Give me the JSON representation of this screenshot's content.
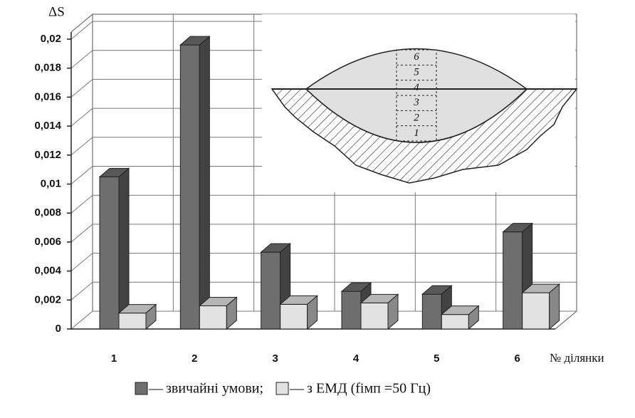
{
  "chart_data": {
    "type": "bar3d",
    "y_label": "ΔS",
    "x_label": "№ ділянки",
    "categories": [
      "1",
      "2",
      "3",
      "4",
      "5",
      "6"
    ],
    "series": [
      {
        "name": "звичайні умови",
        "color": "#6e6e6e",
        "values": [
          0.0105,
          0.0196,
          0.0053,
          0.0026,
          0.0024,
          0.0067
        ]
      },
      {
        "name": "з ЕМД (fімп =50 Гц)",
        "color": "#e2e2e2",
        "values": [
          0.0011,
          0.0016,
          0.0017,
          0.0018,
          0.001,
          0.0025
        ]
      }
    ],
    "ylim": [
      0,
      0.02
    ],
    "yticks": [
      0,
      {
        "value": 0.002,
        "label": "0,002"
      },
      {
        "value": 0.004,
        "label": "0,004"
      },
      {
        "value": 0.006,
        "label": "0,006"
      },
      {
        "value": 0.008,
        "label": "0,008"
      },
      {
        "value": 0.01,
        "label": "0,01"
      },
      {
        "value": 0.012,
        "label": "0,012"
      },
      {
        "value": 0.014,
        "label": "0,014"
      },
      {
        "value": 0.016,
        "label": "0,016"
      },
      {
        "value": 0.018,
        "label": "0,018"
      },
      {
        "value": 0.02,
        "label": "0,02"
      }
    ],
    "grid": true,
    "legend_dash": "—",
    "legend_separator": ";",
    "inset": {
      "layer_labels": [
        "1",
        "2",
        "3",
        "4",
        "5",
        "6"
      ]
    }
  }
}
